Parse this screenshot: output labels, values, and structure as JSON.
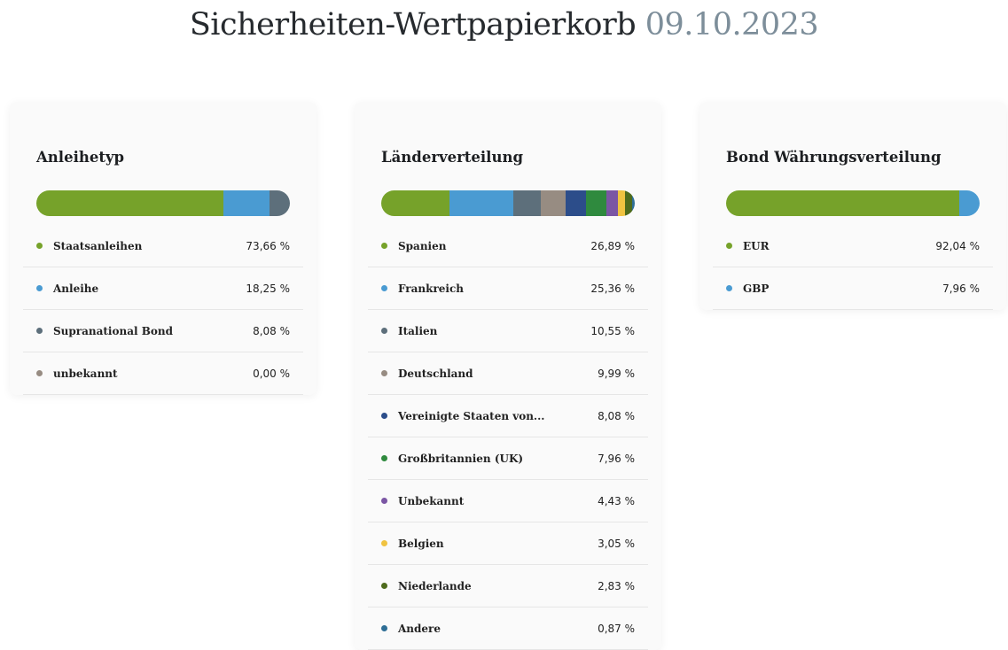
{
  "header": {
    "title": "Sicherheiten-Wertpapierkorb",
    "date": "09.10.2023"
  },
  "chart_data": [
    {
      "type": "bar",
      "title": "Anleihetyp",
      "categories": [
        "Staatsanleihen",
        "Anleihe",
        "Supranational Bond",
        "unbekannt"
      ],
      "values": [
        73.66,
        18.25,
        8.08,
        0.0
      ],
      "labels": [
        "73,66 %",
        "18,25 %",
        "8,08 %",
        "0,00 %"
      ],
      "colors": [
        "#76a22a",
        "#4a9bd2",
        "#5d6f7b",
        "#978c82"
      ]
    },
    {
      "type": "bar",
      "title": "Länderverteilung",
      "categories": [
        "Spanien",
        "Frankreich",
        "Italien",
        "Deutschland",
        "Vereinigte Staaten von...",
        "Großbritannien (UK)",
        "Unbekannt",
        "Belgien",
        "Niederlande",
        "Andere"
      ],
      "values": [
        26.89,
        25.36,
        10.55,
        9.99,
        8.08,
        7.96,
        4.43,
        3.05,
        2.83,
        0.87
      ],
      "labels": [
        "26,89 %",
        "25,36 %",
        "10,55 %",
        "9,99 %",
        "8,08 %",
        "7,96 %",
        "4,43 %",
        "3,05 %",
        "2,83 %",
        "0,87 %"
      ],
      "colors": [
        "#76a22a",
        "#4a9bd2",
        "#5d6f7b",
        "#978c82",
        "#2c4d8a",
        "#2f8a3e",
        "#7b56a4",
        "#f0c341",
        "#4e6b1c",
        "#2e6e96"
      ]
    },
    {
      "type": "bar",
      "title": "Bond Währungsverteilung",
      "categories": [
        "EUR",
        "GBP"
      ],
      "values": [
        92.04,
        7.96
      ],
      "labels": [
        "92,04 %",
        "7,96 %"
      ],
      "colors": [
        "#76a22a",
        "#4a9bd2"
      ]
    }
  ]
}
